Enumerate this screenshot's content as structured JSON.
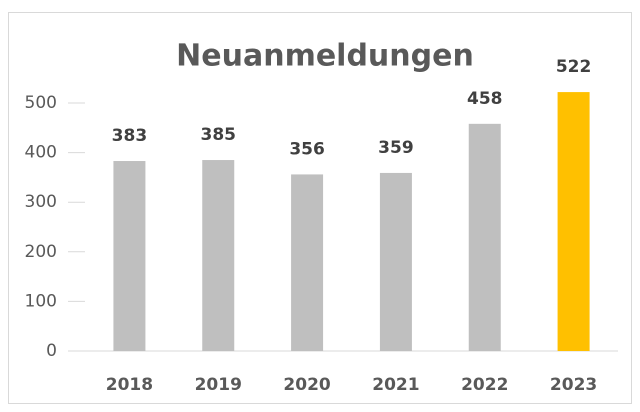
{
  "chart_data": {
    "type": "bar",
    "title": "Neuanmeldungen",
    "categories": [
      "2018",
      "2019",
      "2020",
      "2021",
      "2022",
      "2023"
    ],
    "values": [
      383,
      385,
      356,
      359,
      458,
      522
    ],
    "colors": [
      "#bfbfbf",
      "#bfbfbf",
      "#bfbfbf",
      "#bfbfbf",
      "#bfbfbf",
      "#ffc000"
    ],
    "ylim": [
      0,
      600
    ],
    "yticks": [
      0,
      100,
      200,
      300,
      400,
      500
    ],
    "grid": false
  }
}
